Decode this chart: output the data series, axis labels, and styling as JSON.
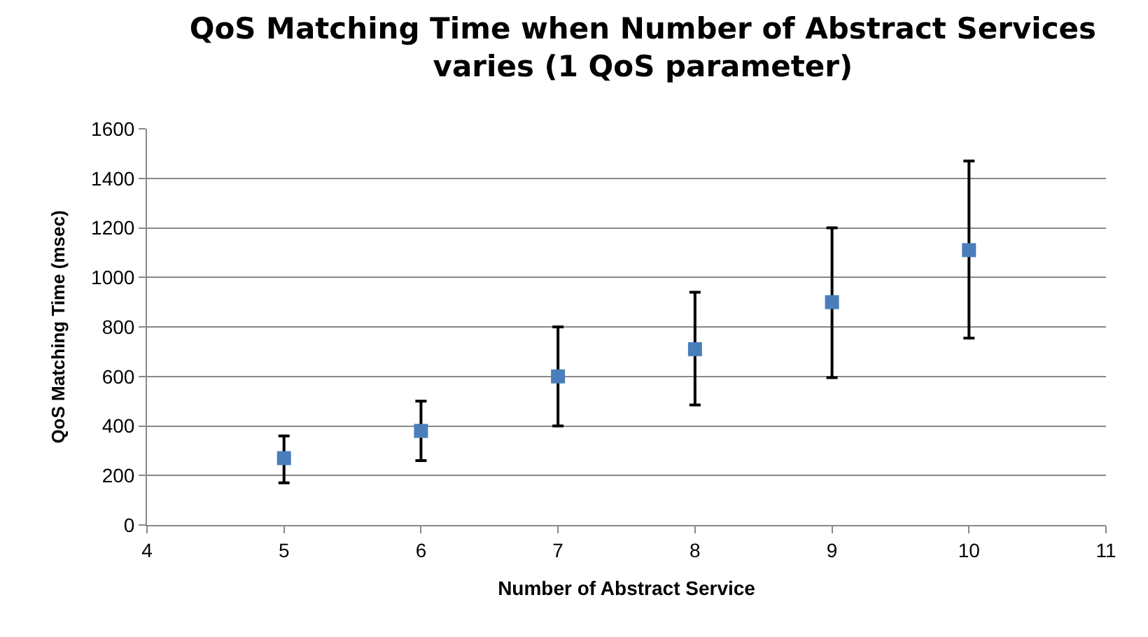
{
  "chart_data": {
    "type": "scatter",
    "title": "QoS Matching Time when Number of Abstract Services varies (1 QoS parameter)",
    "xlabel": "Number of Abstract Service",
    "ylabel": "QoS Matching Time (msec)",
    "x": [
      5,
      6,
      7,
      8,
      9,
      10
    ],
    "series": [
      {
        "color": "#4a7ebb",
        "values": [
          270,
          380,
          600,
          710,
          900,
          1110
        ],
        "errors": [
          [
            170,
            360
          ],
          [
            260,
            500
          ],
          [
            400,
            800
          ],
          [
            485,
            940
          ],
          [
            595,
            1200
          ],
          [
            755,
            1470
          ]
        ]
      }
    ],
    "xlim": [
      4,
      11
    ],
    "xticks": [
      4,
      5,
      6,
      7,
      8,
      9,
      10,
      11
    ],
    "ylim": [
      0,
      1600
    ],
    "yticks": [
      0,
      200,
      400,
      600,
      800,
      1000,
      1200,
      1400,
      1600
    ],
    "grid": "y",
    "marker": "square",
    "legend": false
  }
}
